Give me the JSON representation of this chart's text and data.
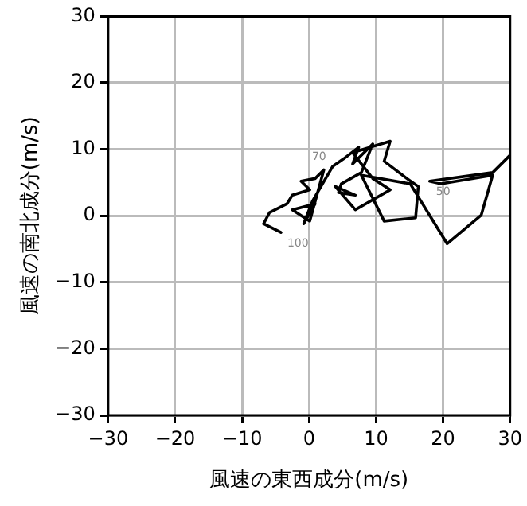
{
  "chart_data": {
    "type": "line",
    "xlabel": "風速の東西成分(m/s)",
    "ylabel": "風速の南北成分(m/s)",
    "xlim": [
      -30,
      30
    ],
    "ylim": [
      -30,
      30
    ],
    "xticks": [
      -30,
      -20,
      -10,
      0,
      10,
      20,
      30
    ],
    "yticks": [
      -30,
      -20,
      -10,
      0,
      10,
      20,
      30
    ],
    "grid": true,
    "legend": false,
    "marker": "none",
    "line_style": "solid",
    "series": [
      {
        "color": "#000000",
        "x": [
          -4.2,
          -6.8,
          -5.9,
          -3.3,
          -2.5,
          0.1,
          -1.2,
          0.9,
          2.2,
          0.1,
          -2.5,
          0.9,
          -0.8,
          0.5,
          3.5,
          5.2,
          7.4,
          6.5,
          9.5,
          7.8,
          4.8,
          4.4,
          6.9,
          3.9,
          6.9,
          12.1,
          9.5,
          6.5,
          12.1,
          11.2,
          14.6,
          16.3,
          15.9,
          11.2,
          7.8,
          15.1,
          20.6,
          25.7,
          27.4,
          19.7,
          18.0,
          27.4,
          30
        ],
        "values": [
          -2.5,
          -1.2,
          0.5,
          1.8,
          3.1,
          3.9,
          5.2,
          5.6,
          6.9,
          -0.8,
          0.9,
          1.8,
          -1.2,
          2.2,
          7.4,
          8.6,
          10.3,
          7.8,
          10.8,
          6.5,
          4.8,
          3.5,
          3.1,
          4.4,
          0.9,
          3.9,
          5.6,
          9.5,
          11.2,
          8.2,
          5.6,
          4.4,
          -0.3,
          -0.8,
          6.1,
          4.8,
          -4.2,
          0.1,
          6.1,
          4.8,
          5.2,
          6.5,
          9.1
        ]
      }
    ],
    "annotations": [
      {
        "text": "70",
        "x": 3.5,
        "y": 7.4
      },
      {
        "text": "50",
        "x": 18.0,
        "y": 5.2
      },
      {
        "text": "100",
        "x": -4.2,
        "y": -2.5
      }
    ]
  }
}
